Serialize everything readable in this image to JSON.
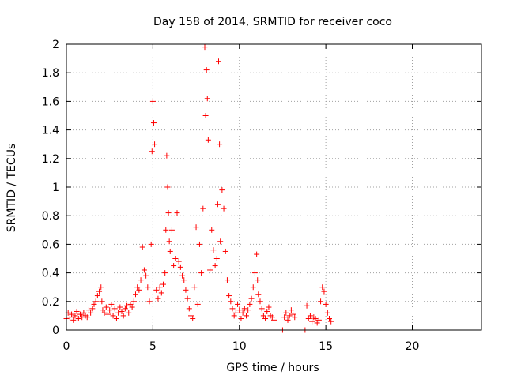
{
  "chart_data": {
    "type": "scatter",
    "title": "Day 158 of 2014, SRMTID for receiver coco",
    "xlabel": "GPS time / hours",
    "ylabel": "SRMTID / TECUs",
    "xlim": [
      0,
      24
    ],
    "ylim": [
      0,
      2
    ],
    "xticks": [
      0,
      5,
      10,
      15,
      20
    ],
    "xtick_labels": [
      "0",
      "5",
      "10",
      "15",
      "20"
    ],
    "yticks": [
      0,
      0.2,
      0.4,
      0.6,
      0.8,
      1,
      1.2,
      1.4,
      1.6,
      1.8,
      2
    ],
    "ytick_labels": [
      "0",
      "0.2",
      "0.4",
      "0.6",
      "0.8",
      "1",
      "1.2",
      "1.4",
      "1.6",
      "1.8",
      "2"
    ],
    "grid": true,
    "marker": "+",
    "color": "#ff0000",
    "series": [
      {
        "name": "SRMTID",
        "x": [
          0.0,
          0.1,
          0.2,
          0.3,
          0.4,
          0.5,
          0.6,
          0.7,
          0.8,
          0.9,
          1.0,
          1.1,
          1.2,
          1.3,
          1.4,
          1.5,
          1.6,
          1.7,
          1.8,
          1.9,
          2.0,
          2.05,
          2.1,
          2.2,
          2.3,
          2.4,
          2.5,
          2.6,
          2.7,
          2.8,
          2.9,
          3.0,
          3.1,
          3.2,
          3.3,
          3.4,
          3.5,
          3.6,
          3.7,
          3.8,
          3.9,
          4.0,
          4.1,
          4.2,
          4.3,
          4.4,
          4.5,
          4.6,
          4.7,
          4.8,
          4.9,
          4.95,
          5.0,
          5.05,
          5.1,
          5.2,
          5.3,
          5.4,
          5.5,
          5.6,
          5.7,
          5.75,
          5.8,
          5.85,
          5.9,
          5.95,
          6.0,
          6.1,
          6.2,
          6.3,
          6.4,
          6.5,
          6.6,
          6.7,
          6.8,
          6.9,
          7.0,
          7.1,
          7.2,
          7.3,
          7.4,
          7.5,
          7.6,
          7.7,
          7.8,
          7.9,
          8.0,
          8.05,
          8.1,
          8.15,
          8.2,
          8.3,
          8.4,
          8.5,
          8.6,
          8.7,
          8.75,
          8.8,
          8.85,
          8.9,
          9.0,
          9.1,
          9.2,
          9.3,
          9.4,
          9.5,
          9.6,
          9.7,
          9.8,
          9.9,
          10.0,
          10.1,
          10.2,
          10.3,
          10.4,
          10.5,
          10.6,
          10.7,
          10.8,
          10.9,
          11.0,
          11.05,
          11.1,
          11.2,
          11.3,
          11.4,
          11.5,
          11.6,
          11.7,
          11.8,
          11.9,
          12.0,
          12.5,
          12.6,
          12.7,
          12.8,
          12.9,
          13.0,
          13.1,
          13.2,
          13.8,
          13.9,
          14.0,
          14.1,
          14.2,
          14.3,
          14.4,
          14.5,
          14.6,
          14.7,
          14.8,
          14.9,
          15.0,
          15.1,
          15.2,
          15.3
        ],
        "y": [
          0.08,
          0.12,
          0.09,
          0.11,
          0.07,
          0.1,
          0.13,
          0.08,
          0.11,
          0.09,
          0.12,
          0.1,
          0.09,
          0.14,
          0.12,
          0.15,
          0.18,
          0.2,
          0.24,
          0.27,
          0.3,
          0.2,
          0.14,
          0.12,
          0.16,
          0.11,
          0.14,
          0.18,
          0.1,
          0.15,
          0.08,
          0.12,
          0.16,
          0.13,
          0.1,
          0.15,
          0.17,
          0.12,
          0.18,
          0.16,
          0.2,
          0.25,
          0.3,
          0.28,
          0.35,
          0.58,
          0.42,
          0.38,
          0.3,
          0.2,
          0.6,
          1.25,
          1.6,
          1.45,
          1.3,
          0.28,
          0.22,
          0.3,
          0.26,
          0.32,
          0.4,
          0.7,
          1.22,
          1.0,
          0.82,
          0.62,
          0.55,
          0.7,
          0.45,
          0.5,
          0.82,
          0.48,
          0.44,
          0.38,
          0.35,
          0.28,
          0.22,
          0.15,
          0.1,
          0.08,
          0.3,
          0.72,
          0.18,
          0.6,
          0.4,
          0.85,
          1.98,
          1.5,
          1.82,
          1.62,
          1.33,
          0.42,
          0.7,
          0.56,
          0.45,
          0.5,
          0.88,
          1.88,
          1.3,
          0.62,
          0.98,
          0.85,
          0.55,
          0.35,
          0.24,
          0.2,
          0.15,
          0.1,
          0.12,
          0.18,
          0.14,
          0.08,
          0.12,
          0.15,
          0.1,
          0.14,
          0.18,
          0.22,
          0.3,
          0.4,
          0.53,
          0.35,
          0.25,
          0.2,
          0.15,
          0.1,
          0.08,
          0.13,
          0.16,
          0.1,
          0.09,
          0.07,
          0.0,
          0.09,
          0.12,
          0.07,
          0.1,
          0.14,
          0.11,
          0.09,
          0.0,
          0.17,
          0.08,
          0.1,
          0.06,
          0.09,
          0.08,
          0.05,
          0.07,
          0.2,
          0.3,
          0.27,
          0.18,
          0.12,
          0.08,
          0.06
        ]
      }
    ]
  }
}
